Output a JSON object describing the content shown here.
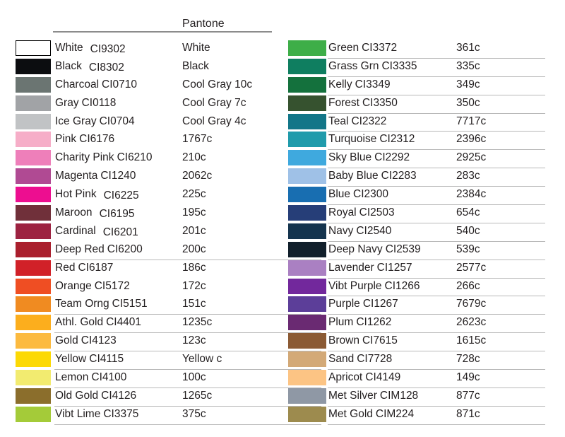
{
  "header": {
    "pantone_label": "Pantone"
  },
  "divider_color": "#8c8c8c",
  "row_underline_color": "#b8b8b8",
  "text_color": "#231f20",
  "chart_data": {
    "type": "table",
    "title": "Pantone",
    "columns": [
      "swatch",
      "name_and_ci_code",
      "pantone_value"
    ],
    "left_rows": [
      {
        "name": "White",
        "code": "CI9302",
        "pantone": "White",
        "hex": "#ffffff",
        "border": true,
        "offset": true,
        "underline": false
      },
      {
        "name": "Black",
        "code": "CI8302",
        "pantone": "Black",
        "hex": "#0c0d10",
        "border": false,
        "offset": true,
        "underline": false
      },
      {
        "name": "Charcoal",
        "code": "CI0710",
        "pantone": "Cool Gray 10c",
        "hex": "#6b7572",
        "border": false,
        "offset": false,
        "underline": false
      },
      {
        "name": "Gray",
        "code": "CI0118",
        "pantone": "Cool Gray 7c",
        "hex": "#a1a3a6",
        "border": false,
        "offset": false,
        "underline": false
      },
      {
        "name": "Ice Gray",
        "code": "CI0704",
        "pantone": "Cool Gray 4c",
        "hex": "#c1c3c5",
        "border": false,
        "offset": false,
        "underline": false
      },
      {
        "name": "Pink",
        "code": "CI6176",
        "pantone": "1767c",
        "hex": "#f6aec8",
        "border": false,
        "offset": false,
        "underline": false
      },
      {
        "name": "Charity Pink",
        "code": "CI6210",
        "pantone": "210c",
        "hex": "#ee7fba",
        "border": false,
        "offset": false,
        "underline": false
      },
      {
        "name": "Magenta",
        "code": "CI1240",
        "pantone": "2062c",
        "hex": "#b04a93",
        "border": false,
        "offset": false,
        "underline": false
      },
      {
        "name": "Hot Pink",
        "code": "CI6225",
        "pantone": "225c",
        "hex": "#ed0e90",
        "border": false,
        "offset": true,
        "underline": false
      },
      {
        "name": "Maroon",
        "code": "CI6195",
        "pantone": "195c",
        "hex": "#70303a",
        "border": false,
        "offset": true,
        "underline": false
      },
      {
        "name": "Cardinal",
        "code": "CI6201",
        "pantone": "201c",
        "hex": "#9d2241",
        "border": false,
        "offset": true,
        "underline": false
      },
      {
        "name": "Deep Red",
        "code": "CI6200",
        "pantone": "200c",
        "hex": "#aa1f2d",
        "border": false,
        "offset": false,
        "underline": true
      },
      {
        "name": "Red",
        "code": "CI6187",
        "pantone": "186c",
        "hex": "#d12128",
        "border": false,
        "offset": false,
        "underline": false
      },
      {
        "name": "Orange",
        "code": "CI5172",
        "pantone": "172c",
        "hex": "#ef4e23",
        "border": false,
        "offset": false,
        "underline": false
      },
      {
        "name": "Team Orng",
        "code": "CI5151",
        "pantone": "151c",
        "hex": "#f08b21",
        "border": false,
        "offset": false,
        "underline": true
      },
      {
        "name": "Athl. Gold",
        "code": "CI4401",
        "pantone": "1235c",
        "hex": "#fcae1d",
        "border": false,
        "offset": false,
        "underline": true
      },
      {
        "name": "Gold",
        "code": "CI4123",
        "pantone": "123c",
        "hex": "#fcba3f",
        "border": false,
        "offset": false,
        "underline": true
      },
      {
        "name": "Yellow",
        "code": "CI4115",
        "pantone": "Yellow c",
        "hex": "#fcd905",
        "border": false,
        "offset": false,
        "underline": true
      },
      {
        "name": "Lemon",
        "code": "CI4100",
        "pantone": "100c",
        "hex": "#f2eb70",
        "border": false,
        "offset": false,
        "underline": true
      },
      {
        "name": "Old Gold",
        "code": "CI4126",
        "pantone": "1265c",
        "hex": "#8b6e2c",
        "border": false,
        "offset": false,
        "underline": true
      },
      {
        "name": "Vibt Lime",
        "code": "CI3375",
        "pantone": "375c",
        "hex": "#a4cb39",
        "border": false,
        "offset": false,
        "underline": true
      }
    ],
    "right_rows": [
      {
        "name": "Green",
        "code": "CI3372",
        "pantone": "361c",
        "hex": "#3eae48",
        "border": false,
        "offset": false,
        "underline": true
      },
      {
        "name": "Grass Grn",
        "code": "CI3335",
        "pantone": "335c",
        "hex": "#0f7e60",
        "border": false,
        "offset": false,
        "underline": true
      },
      {
        "name": "Kelly",
        "code": "CI3349",
        "pantone": "349c",
        "hex": "#14713d",
        "border": false,
        "offset": false,
        "underline": true
      },
      {
        "name": "Forest",
        "code": "CI3350",
        "pantone": "350c",
        "hex": "#36522f",
        "border": false,
        "offset": false,
        "underline": true
      },
      {
        "name": "Teal",
        "code": "CI2322",
        "pantone": "7717c",
        "hex": "#127688",
        "border": false,
        "offset": false,
        "underline": true
      },
      {
        "name": "Turquoise",
        "code": "CI2312",
        "pantone": "2396c",
        "hex": "#209bab",
        "border": false,
        "offset": false,
        "underline": true
      },
      {
        "name": "Sky Blue",
        "code": "CI2292",
        "pantone": "2925c",
        "hex": "#3fa9de",
        "border": false,
        "offset": false,
        "underline": true
      },
      {
        "name": "Baby Blue",
        "code": "CI2283",
        "pantone": "283c",
        "hex": "#9fc1e7",
        "border": false,
        "offset": false,
        "underline": true
      },
      {
        "name": "Blue",
        "code": "CI2300",
        "pantone": "2384c",
        "hex": "#186eb1",
        "border": false,
        "offset": false,
        "underline": true
      },
      {
        "name": "Royal",
        "code": "CI2503",
        "pantone": "654c",
        "hex": "#263e78",
        "border": false,
        "offset": false,
        "underline": true
      },
      {
        "name": "Navy",
        "code": "CI2540",
        "pantone": "540c",
        "hex": "#15344e",
        "border": false,
        "offset": false,
        "underline": true
      },
      {
        "name": "Deep Navy",
        "code": "CI2539",
        "pantone": "539c",
        "hex": "#111f2b",
        "border": false,
        "offset": false,
        "underline": true
      },
      {
        "name": "Lavender",
        "code": "CI1257",
        "pantone": "2577c",
        "hex": "#aa80c2",
        "border": false,
        "offset": false,
        "underline": true
      },
      {
        "name": "Vibt Purple",
        "code": "CI1266",
        "pantone": "266c",
        "hex": "#72289c",
        "border": false,
        "offset": false,
        "underline": true
      },
      {
        "name": "Purple",
        "code": "CI1267",
        "pantone": "7679c",
        "hex": "#5c3e99",
        "border": false,
        "offset": false,
        "underline": true
      },
      {
        "name": "Plum",
        "code": "CI1262",
        "pantone": "2623c",
        "hex": "#6a2a72",
        "border": false,
        "offset": false,
        "underline": true
      },
      {
        "name": "Brown",
        "code": "CI7615",
        "pantone": "1615c",
        "hex": "#8b5a34",
        "border": false,
        "offset": false,
        "underline": true
      },
      {
        "name": "Sand",
        "code": "CI7728",
        "pantone": "728c",
        "hex": "#d3a977",
        "border": false,
        "offset": false,
        "underline": true
      },
      {
        "name": "Apricot",
        "code": "CI4149",
        "pantone": "149c",
        "hex": "#fcc484",
        "border": false,
        "offset": false,
        "underline": true
      },
      {
        "name": "Met Silver",
        "code": "CIM128",
        "pantone": "877c",
        "hex": "#8f98a5",
        "border": false,
        "offset": false,
        "underline": true
      },
      {
        "name": "Met Gold",
        "code": "CIM224",
        "pantone": "871c",
        "hex": "#9d8b4e",
        "border": false,
        "offset": false,
        "underline": true
      }
    ]
  }
}
